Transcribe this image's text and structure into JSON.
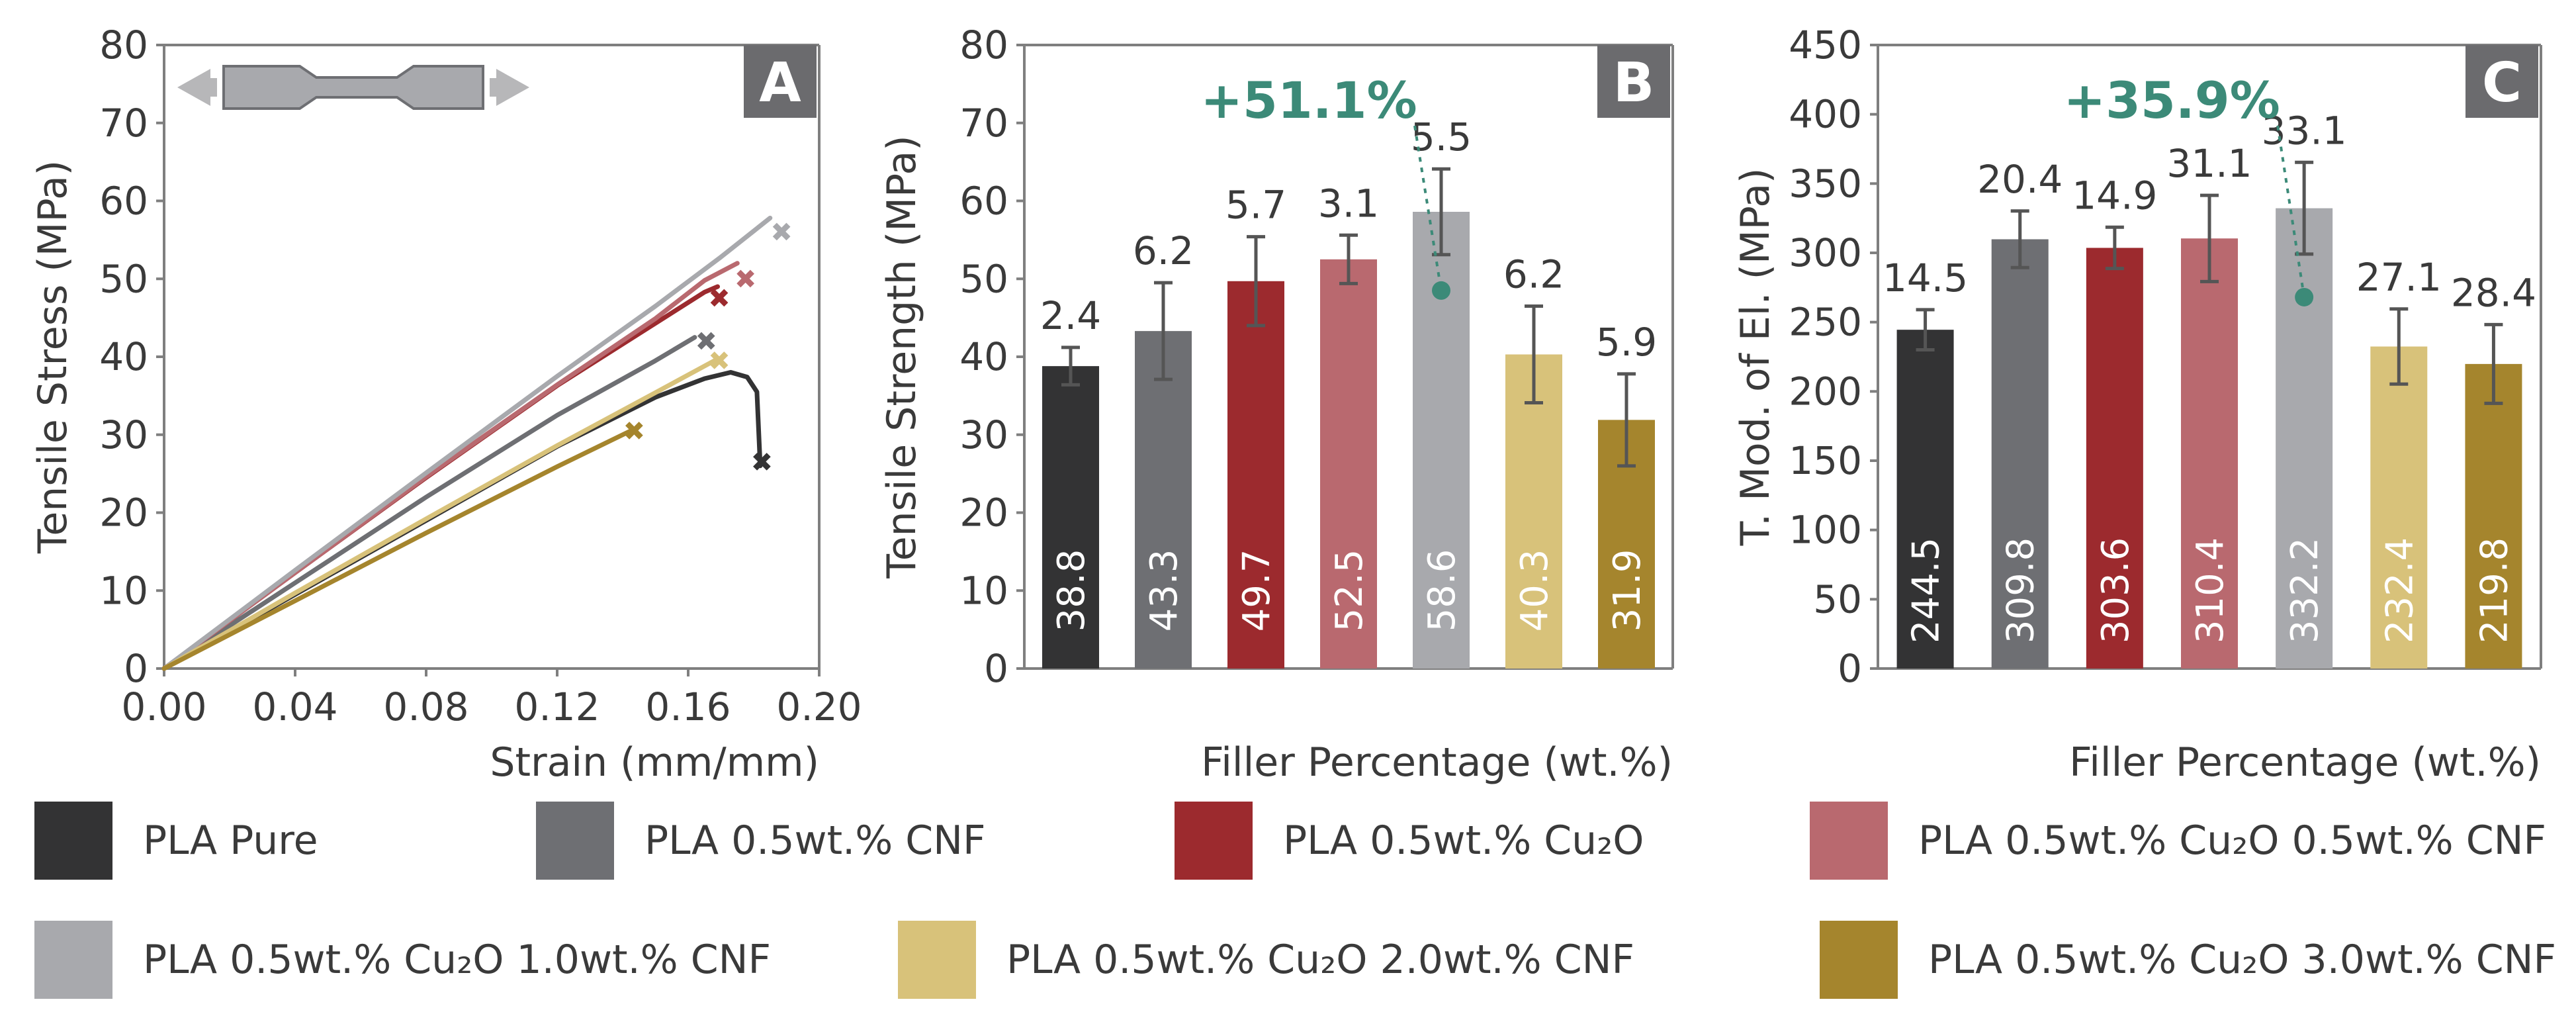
{
  "colors": {
    "PLA Pure": "#333334",
    "PLA 0.5wt.% CNF": "#6e6f73",
    "PLA 0.5wt.% Cu2O": "#9c2a2e",
    "PLA 0.5wt.% Cu2O 0.5wt.% CNF": "#b9696f",
    "PLA 0.5wt.% Cu2O 1.0wt.% CNF": "#a8a9ad",
    "PLA 0.5wt.% Cu2O 2.0wt.% CNF": "#d8c27a",
    "PLA 0.5wt.% Cu2O 3.0wt.% CNF": "#a5852d",
    "axis": "#7f7f7f",
    "annotation": "#3c8a78",
    "panel_badge_bg": "#6b6b6e"
  },
  "legend": [
    {
      "label": "PLA Pure",
      "color": "#333334"
    },
    {
      "label": "PLA 0.5wt.% CNF",
      "color": "#6e6f73"
    },
    {
      "label": "PLA 0.5wt.% Cu₂O",
      "color": "#9c2a2e"
    },
    {
      "label": "PLA 0.5wt.% Cu₂O 0.5wt.% CNF",
      "color": "#b9696f"
    },
    {
      "label": "PLA 0.5wt.% Cu₂O 1.0wt.% CNF",
      "color": "#a8a9ad"
    },
    {
      "label": "PLA 0.5wt.% Cu₂O 2.0wt.% CNF",
      "color": "#d8c27a"
    },
    {
      "label": "PLA 0.5wt.% Cu₂O 3.0wt.% CNF",
      "color": "#a5852d"
    }
  ],
  "chart_data": [
    {
      "panel": "A",
      "type": "line",
      "xlabel": "Strain (mm/mm)",
      "ylabel": "Tensile Stress (MPa)",
      "xlim": [
        0,
        0.2
      ],
      "ylim": [
        0,
        80
      ],
      "xticks": [
        "0.00",
        "0.04",
        "0.08",
        "0.12",
        "0.16",
        "0.20"
      ],
      "yticks": [
        "0",
        "10",
        "20",
        "30",
        "40",
        "50",
        "60",
        "70",
        "80"
      ],
      "series": [
        {
          "name": "PLA Pure",
          "color": "#333334",
          "x": [
            0,
            0.04,
            0.08,
            0.12,
            0.15,
            0.165,
            0.173,
            0.178,
            0.181,
            0.182
          ],
          "y": [
            0,
            9.5,
            19,
            28.5,
            34.8,
            37.2,
            38.0,
            37.4,
            35.5,
            26
          ],
          "failure": [
            0.1825,
            26.5
          ]
        },
        {
          "name": "PLA 0.5wt.% CNF",
          "color": "#6e6f73",
          "x": [
            0,
            0.04,
            0.08,
            0.12,
            0.15,
            0.162
          ],
          "y": [
            0,
            11,
            22,
            32.5,
            39.5,
            42.5
          ],
          "failure": [
            0.1655,
            42
          ]
        },
        {
          "name": "PLA 0.5wt.% Cu2O",
          "color": "#9c2a2e",
          "x": [
            0,
            0.04,
            0.08,
            0.12,
            0.15,
            0.165,
            0.169
          ],
          "y": [
            0,
            12.3,
            24.5,
            36.3,
            44.3,
            48.3,
            49.0
          ],
          "failure": [
            0.1695,
            47.5
          ]
        },
        {
          "name": "PLA 0.5wt.% Cu2O 0.5wt.% CNF",
          "color": "#b9696f",
          "x": [
            0,
            0.04,
            0.08,
            0.12,
            0.15,
            0.165,
            0.175
          ],
          "y": [
            0,
            12.3,
            24.6,
            36.4,
            44.9,
            49.8,
            52.0
          ],
          "failure": [
            0.1775,
            50
          ]
        },
        {
          "name": "PLA 0.5wt.% Cu2O 1.0wt.% CNF",
          "color": "#a8a9ad",
          "x": [
            0,
            0.04,
            0.08,
            0.12,
            0.15,
            0.17,
            0.185
          ],
          "y": [
            0,
            12.6,
            25.1,
            37.5,
            46.5,
            52.8,
            57.8
          ],
          "failure": [
            0.1885,
            56
          ]
        },
        {
          "name": "PLA 0.5wt.% Cu2O 2.0wt.% CNF",
          "color": "#d8c27a",
          "x": [
            0,
            0.04,
            0.08,
            0.12,
            0.15,
            0.168
          ],
          "y": [
            0,
            9.7,
            19.2,
            28.6,
            35.4,
            39.5
          ],
          "failure": [
            0.1695,
            39.5
          ]
        },
        {
          "name": "PLA 0.5wt.% Cu2O 3.0wt.% CNF",
          "color": "#a5852d",
          "x": [
            0,
            0.04,
            0.08,
            0.12,
            0.142
          ],
          "y": [
            0,
            8.7,
            17.4,
            25.9,
            30.4
          ],
          "failure": [
            0.1435,
            30.5
          ]
        }
      ]
    },
    {
      "panel": "B",
      "type": "bar",
      "xlabel": "Filler Percentage (wt.%)",
      "ylabel": "Tensile Strength (MPa)",
      "ylim": [
        0,
        80
      ],
      "yticks": [
        "0",
        "10",
        "20",
        "30",
        "40",
        "50",
        "60",
        "70",
        "80"
      ],
      "categories": [
        "PLA Pure",
        "PLA 0.5wt.% CNF",
        "PLA 0.5wt.% Cu2O",
        "PLA 0.5wt.% Cu2O 0.5wt.% CNF",
        "PLA 0.5wt.% Cu2O 1.0wt.% CNF",
        "PLA 0.5wt.% Cu2O 2.0wt.% CNF",
        "PLA 0.5wt.% Cu2O 3.0wt.% CNF"
      ],
      "values": [
        38.8,
        43.3,
        49.7,
        52.5,
        58.6,
        40.3,
        31.9
      ],
      "value_labels": [
        "38.8",
        "43.3",
        "49.7",
        "52.5",
        "58.6",
        "40.3",
        "31.9"
      ],
      "errors": [
        2.4,
        6.2,
        5.7,
        3.1,
        5.5,
        6.2,
        5.9
      ],
      "error_labels": [
        "2.4",
        "6.2",
        "5.7",
        "3.1",
        "5.5",
        "6.2",
        "5.9"
      ],
      "annotation": {
        "text": "+51.1%",
        "bar_index": 4,
        "point_value": 48.5
      }
    },
    {
      "panel": "C",
      "type": "bar",
      "xlabel": "Filler Percentage (wt.%)",
      "ylabel": "T. Mod. of El. (MPa)",
      "ylim": [
        0,
        450
      ],
      "yticks": [
        "0",
        "50",
        "100",
        "150",
        "200",
        "250",
        "300",
        "350",
        "400",
        "450"
      ],
      "categories": [
        "PLA Pure",
        "PLA 0.5wt.% CNF",
        "PLA 0.5wt.% Cu2O",
        "PLA 0.5wt.% Cu2O 0.5wt.% CNF",
        "PLA 0.5wt.% Cu2O 1.0wt.% CNF",
        "PLA 0.5wt.% Cu2O 2.0wt.% CNF",
        "PLA 0.5wt.% Cu2O 3.0wt.% CNF"
      ],
      "values": [
        244.5,
        309.8,
        303.6,
        310.4,
        332.2,
        232.4,
        219.8
      ],
      "value_labels": [
        "244.5",
        "309.8",
        "303.6",
        "310.4",
        "332.2",
        "232.4",
        "219.8"
      ],
      "errors": [
        14.5,
        20.4,
        14.9,
        31.1,
        33.1,
        27.1,
        28.4
      ],
      "error_labels": [
        "14.5",
        "20.4",
        "14.9",
        "31.1",
        "33.1",
        "27.1",
        "28.4"
      ],
      "annotation": {
        "text": "+35.9%",
        "bar_index": 4,
        "point_value": 268
      }
    }
  ]
}
